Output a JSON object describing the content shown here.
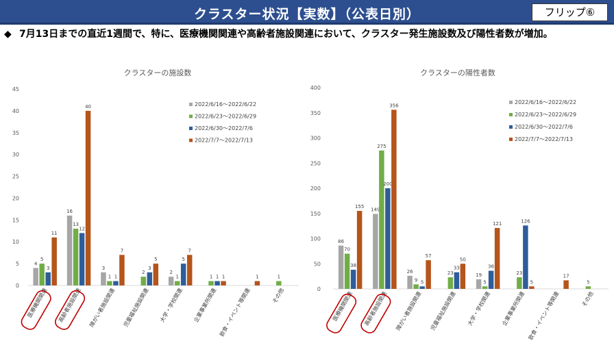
{
  "header": {
    "title": "クラスター状況【実数】（公表日別）",
    "flip_label": "フリップ⑥"
  },
  "headline": {
    "bullet": "◆",
    "text": "7月13日までの直近1週間で、特に、医療機関関連や高齢者施設関連において、クラスター発生施設数及び陽性者数が増加。"
  },
  "colors": {
    "series": [
      "#a6a6a6",
      "#70ad47",
      "#2e5d9a",
      "#b5541b"
    ],
    "highlight": "#c00000",
    "header_bg": "#2d4f8f"
  },
  "chart_data": [
    {
      "type": "bar",
      "title": "クラスターの施設数",
      "categories": [
        "医療機関関連",
        "高齢者施設関連",
        "障がい者施設関連",
        "児童福祉施設関連",
        "大学・学校関連",
        "企業事業所関連",
        "飲食・イベント等関連",
        "その他"
      ],
      "series": [
        {
          "name": "2022/6/16～2022/6/22",
          "values": [
            4,
            16,
            3,
            0,
            2,
            0,
            0,
            0
          ]
        },
        {
          "name": "2022/6/23～2022/6/29",
          "values": [
            5,
            13,
            1,
            2,
            1,
            1,
            0,
            1
          ]
        },
        {
          "name": "2022/6/30～2022/7/6",
          "values": [
            3,
            12,
            1,
            3,
            5,
            1,
            0,
            0
          ]
        },
        {
          "name": "2022/7/7～2022/7/13",
          "values": [
            11,
            40,
            7,
            5,
            7,
            1,
            1,
            0
          ]
        }
      ],
      "ylim": [
        0,
        45
      ],
      "yticks": [
        "0",
        "5",
        "10",
        "15",
        "20",
        "25",
        "30",
        "35",
        "40",
        "45"
      ],
      "highlighted_categories": [
        0,
        1
      ],
      "legend_position": "right"
    },
    {
      "type": "bar",
      "title": "クラスターの陽性者数",
      "categories": [
        "医療機関関連",
        "高齢者施設関連",
        "障がい者施設関連",
        "児童福祉施設関連",
        "大学・学校関連",
        "企業事業所関連",
        "飲食・イベント等関連",
        "その他"
      ],
      "series": [
        {
          "name": "2022/6/16～2022/6/22",
          "values": [
            86,
            149,
            26,
            0,
            19,
            0,
            0,
            0
          ]
        },
        {
          "name": "2022/6/23～2022/6/29",
          "values": [
            70,
            275,
            9,
            23,
            5,
            23,
            0,
            5
          ]
        },
        {
          "name": "2022/6/30～2022/7/6",
          "values": [
            38,
            200,
            5,
            33,
            36,
            126,
            0,
            0
          ]
        },
        {
          "name": "2022/7/7～2022/7/13",
          "values": [
            155,
            356,
            57,
            50,
            121,
            5,
            17,
            0
          ]
        }
      ],
      "ylim": [
        0,
        400
      ],
      "yticks": [
        "0",
        "50",
        "100",
        "150",
        "200",
        "250",
        "300",
        "350",
        "400"
      ],
      "highlighted_categories": [
        0,
        1
      ],
      "legend_position": "right"
    }
  ]
}
